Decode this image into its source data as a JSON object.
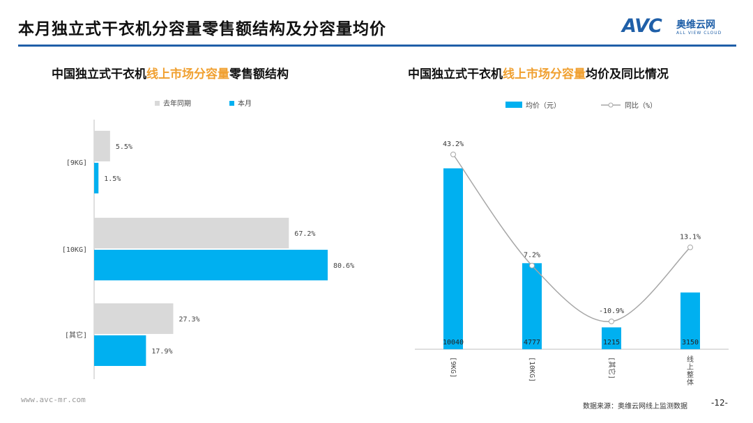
{
  "header": {
    "title": "本月独立式干衣机分容量零售额结构及分容量均价",
    "logo_mark": "AVC",
    "logo_cn": "奥维云网",
    "logo_en": "ALL VIEW CLOUD"
  },
  "left_panel": {
    "title_pre": "中国独立式干衣机",
    "title_hl": "线上市场分容量",
    "title_post": "零售额结构"
  },
  "right_panel": {
    "title_pre": "中国独立式干衣机",
    "title_hl": "线上市场分容量",
    "title_post": "均价及同比情况"
  },
  "colors": {
    "accent": "#00b0f0",
    "prior": "#d9d9d9",
    "line": "#a6a6a6",
    "highlight": "#f0a030",
    "brand": "#1f5fa8"
  },
  "chart_data": [
    {
      "type": "bar",
      "orientation": "horizontal",
      "categories": [
        "[9KG]",
        "[10KG]",
        "[其它]"
      ],
      "series": [
        {
          "name": "去年同期",
          "values": [
            5.5,
            67.2,
            27.3
          ],
          "labels": [
            "5.5%",
            "67.2%",
            "27.3%"
          ]
        },
        {
          "name": "本月",
          "values": [
            1.5,
            80.6,
            17.9
          ],
          "labels": [
            "1.5%",
            "80.6%",
            "17.9%"
          ]
        }
      ],
      "xlim": [
        0,
        100
      ],
      "legend": "top"
    },
    {
      "type": "bar",
      "categories": [
        "[9KG]",
        "[10KG]",
        "[其它]",
        "线上整体"
      ],
      "series": [
        {
          "name": "均价（元）",
          "type": "bar",
          "values": [
            10040,
            4777,
            1215,
            3150
          ],
          "labels": [
            "10040",
            "4777",
            "1215",
            "3150"
          ]
        },
        {
          "name": "同比（%）",
          "type": "line",
          "values": [
            43.2,
            7.2,
            -10.9,
            13.1
          ],
          "labels": [
            "43.2%",
            "7.2%",
            "-10.9%",
            "13.1%"
          ]
        }
      ],
      "ylim": [
        0,
        11000
      ],
      "y2lim": [
        -17,
        58
      ],
      "legend": "top"
    }
  ],
  "footer": {
    "url": "www.avc-mr.com",
    "source": "数据来源：奥维云网线上监测数据",
    "page": "-12-"
  }
}
